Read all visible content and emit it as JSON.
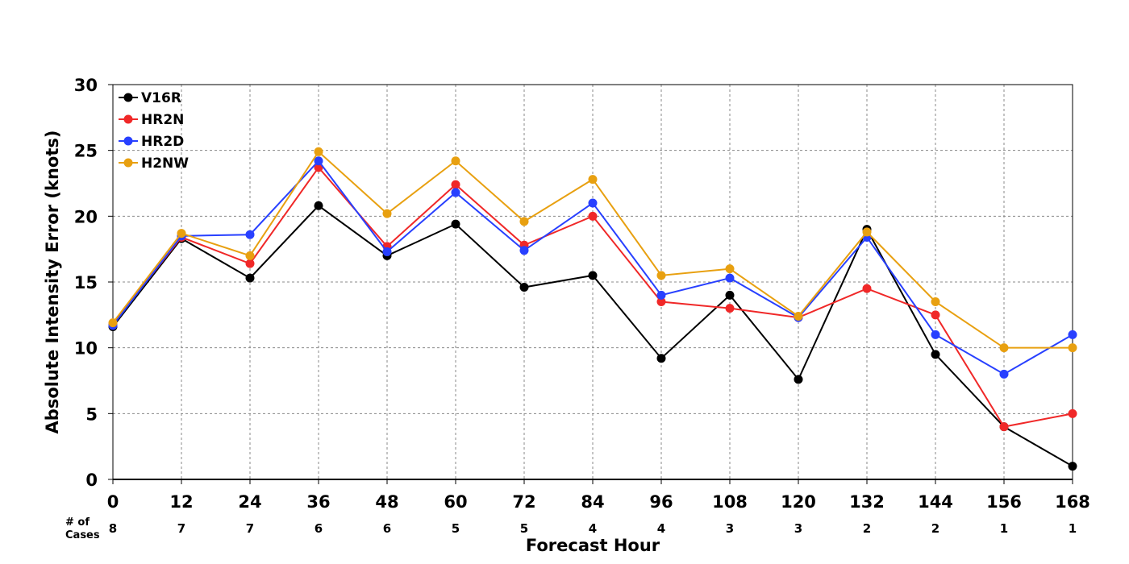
{
  "chart_data": {
    "type": "line",
    "xlabel": "Forecast Hour",
    "ylabel": "Absolute Intensity Error (knots)",
    "x": [
      0,
      12,
      24,
      36,
      48,
      60,
      72,
      84,
      96,
      108,
      120,
      132,
      144,
      156,
      168
    ],
    "ylim": [
      0,
      30
    ],
    "yticks": [
      0,
      5,
      10,
      15,
      20,
      25,
      30
    ],
    "grid": true,
    "legend_position": "top-left",
    "cases_label": [
      "# of",
      "Cases"
    ],
    "cases": [
      8,
      7,
      7,
      6,
      6,
      5,
      5,
      4,
      4,
      3,
      3,
      2,
      2,
      1,
      1
    ],
    "series": [
      {
        "name": "V16R",
        "color": "#000000",
        "values": [
          11.6,
          18.3,
          15.3,
          20.8,
          17.0,
          19.4,
          14.6,
          15.5,
          9.2,
          14.0,
          7.6,
          19.0,
          9.5,
          4.0,
          1.0
        ]
      },
      {
        "name": "HR2N",
        "color": "#f02828",
        "values": [
          11.8,
          18.4,
          16.4,
          23.7,
          17.7,
          22.4,
          17.8,
          20.0,
          13.5,
          13.0,
          12.3,
          14.5,
          12.5,
          4.0,
          5.0
        ]
      },
      {
        "name": "HR2D",
        "color": "#2840ff",
        "values": [
          11.7,
          18.5,
          18.6,
          24.2,
          17.3,
          21.8,
          17.4,
          21.0,
          14.0,
          15.3,
          12.3,
          18.4,
          11.0,
          8.0,
          11.0
        ]
      },
      {
        "name": "H2NW",
        "color": "#e8a010",
        "values": [
          11.9,
          18.7,
          17.0,
          24.9,
          20.2,
          24.2,
          19.6,
          22.8,
          15.5,
          16.0,
          12.4,
          18.8,
          13.5,
          10.0,
          10.0
        ]
      }
    ]
  }
}
